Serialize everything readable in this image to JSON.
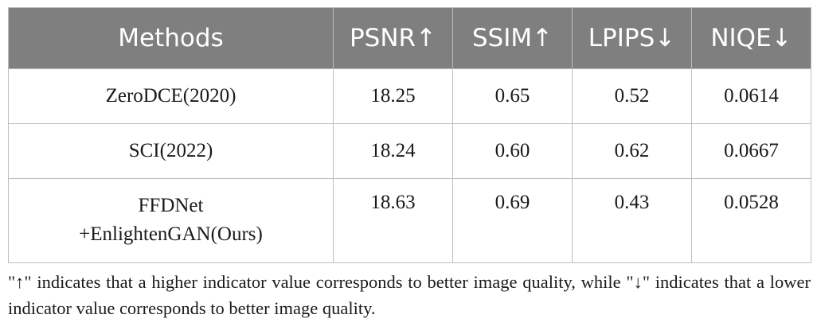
{
  "table": {
    "headers": [
      "Methods",
      "PSNR↑",
      "SSIM↑",
      "LPIPS↓",
      "NIQE↓"
    ],
    "rows": [
      {
        "method_lines": [
          "ZeroDCE(2020)"
        ],
        "psnr": "18.25",
        "ssim": "0.65",
        "lpips": "0.52",
        "niqe": "0.0614"
      },
      {
        "method_lines": [
          "SCI(2022)"
        ],
        "psnr": "18.24",
        "ssim": "0.60",
        "lpips": "0.62",
        "niqe": "0.0667"
      },
      {
        "method_lines": [
          "FFDNet",
          "+EnlightenGAN(Ours)"
        ],
        "psnr": "18.63",
        "ssim": "0.69",
        "lpips": "0.43",
        "niqe": "0.0528"
      }
    ]
  },
  "footnote": "\"↑\" indicates that a higher indicator value corresponds to better image quality, while \"↓\" indicates that a lower indicator value corresponds to better image quality."
}
